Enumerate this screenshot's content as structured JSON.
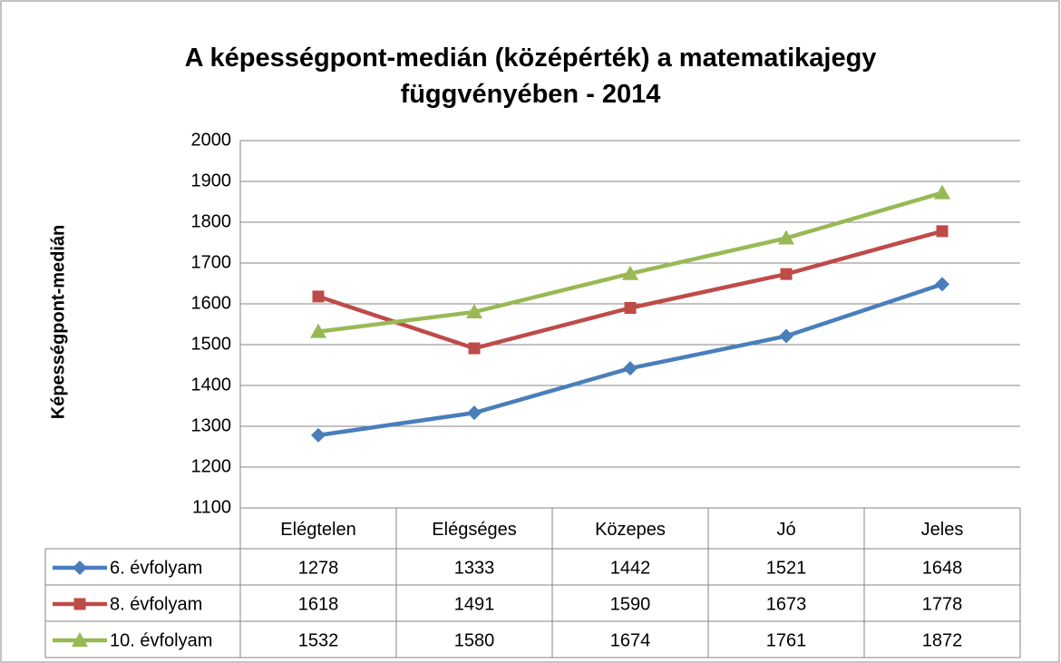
{
  "chart_data": {
    "type": "line",
    "title": "A képességpont-medián (középérték) a matematikajegy függvényében - 2014",
    "y_label": "Képességpont-medián",
    "categories": [
      "Elégtelen",
      "Elégséges",
      "Közepes",
      "Jó",
      "Jeles"
    ],
    "series": [
      {
        "name": "6. évfolyam",
        "color": "#4a7ebb",
        "marker": "diamond",
        "values": [
          1278,
          1333,
          1442,
          1521,
          1648
        ]
      },
      {
        "name": "8. évfolyam",
        "color": "#be4b48",
        "marker": "square",
        "values": [
          1618,
          1491,
          1590,
          1673,
          1778
        ]
      },
      {
        "name": "10. évfolyam",
        "color": "#98b954",
        "marker": "triangle",
        "values": [
          1532,
          1580,
          1674,
          1761,
          1872
        ]
      }
    ],
    "ylim": [
      1100,
      2000
    ],
    "yticks": [
      1100,
      1200,
      1300,
      1400,
      1500,
      1600,
      1700,
      1800,
      1900,
      2000
    ],
    "grid": true,
    "data_table": true
  }
}
